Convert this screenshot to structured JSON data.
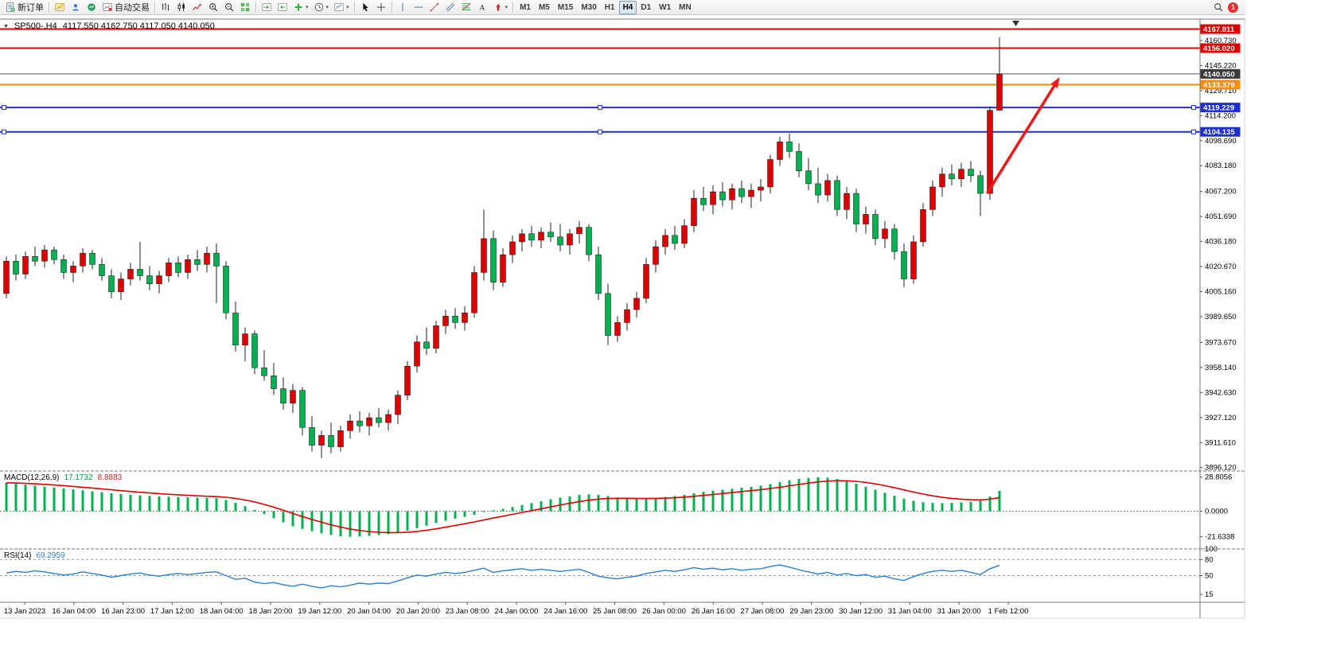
{
  "glyphs": {
    "caret": "▾"
  },
  "colors": {
    "bull": "#e00000",
    "bear": "#00b14f",
    "wick": "#222222",
    "macd_hist": "#00b14f",
    "macd_signal": "#e00000",
    "rsi_line": "#2a7fd0",
    "arrow": "#f01818",
    "axis_text": "#000000",
    "hline_red": "#f00000",
    "hline_blue": "#1d2fd0",
    "hline_orange": "#ff8c00",
    "price_line": "#5a5a5a"
  },
  "toolbar": {
    "notification_count": "1",
    "groups": [
      {
        "items": [
          {
            "name": "new-order-button",
            "icon": "new-order",
            "label": "新订单"
          }
        ]
      },
      {
        "items": [
          {
            "name": "new-chart-button",
            "icon": "new-chart"
          },
          {
            "name": "profiles-button",
            "icon": "profiles"
          },
          {
            "name": "market-watch-button",
            "icon": "market-watch"
          },
          {
            "name": "autotrading-button",
            "icon": "autotrading",
            "label": "自动交易"
          }
        ]
      },
      {
        "items": [
          {
            "name": "bar-chart-button",
            "icon": "bar-chart"
          },
          {
            "name": "candle-chart-button",
            "icon": "candle-chart"
          },
          {
            "name": "line-chart-button",
            "icon": "line-chart"
          },
          {
            "name": "zoom-in-button",
            "icon": "zoom-in"
          },
          {
            "name": "zoom-out-button",
            "icon": "zoom-out"
          },
          {
            "name": "tile-windows-button",
            "icon": "tile-windows"
          }
        ]
      },
      {
        "items": [
          {
            "name": "auto-scroll-button",
            "icon": "auto-scroll"
          },
          {
            "name": "chart-shift-button",
            "icon": "chart-shift"
          },
          {
            "name": "indicators-button",
            "icon": "add-indicator",
            "caret": true
          },
          {
            "name": "periods-button",
            "icon": "clock",
            "caret": true
          },
          {
            "name": "templates-button",
            "icon": "template",
            "caret": true
          }
        ]
      },
      {
        "items": [
          {
            "name": "cursor-button",
            "icon": "cursor"
          },
          {
            "name": "crosshair-button",
            "icon": "crosshair"
          }
        ]
      },
      {
        "items": [
          {
            "name": "vertical-line-button",
            "icon": "vertical-line"
          },
          {
            "name": "horizontal-line-button",
            "icon": "horizontal-line"
          },
          {
            "name": "trendline-button",
            "icon": "trendline"
          },
          {
            "name": "channel-button",
            "icon": "channel"
          },
          {
            "name": "fibonacci-button",
            "icon": "fibonacci"
          },
          {
            "name": "text-button",
            "icon": "text-label"
          },
          {
            "name": "arrows-button",
            "icon": "arrows",
            "caret": true
          }
        ]
      },
      {
        "type": "timeframes",
        "items": [
          {
            "label": "M1"
          },
          {
            "label": "M5"
          },
          {
            "label": "M15"
          },
          {
            "label": "M30"
          },
          {
            "label": "H1"
          },
          {
            "label": "H4",
            "active": true
          },
          {
            "label": "D1"
          },
          {
            "label": "W1"
          },
          {
            "label": "MN"
          }
        ]
      }
    ]
  },
  "chart": {
    "title": {
      "expand_icon": "▼",
      "symbol": "SP500-,H4",
      "ohlc": "4117.550 4162.750 4117.050 4140.050"
    },
    "hlines": [
      {
        "label": "4167.811",
        "price": 4167.811,
        "color": "#f00000",
        "badge": "#e00000",
        "width": 2
      },
      {
        "label": "4156.020",
        "price": 4156.02,
        "color": "#f00000",
        "badge": "#e00000",
        "width": 2
      },
      {
        "label": "4140.050",
        "price": 4140.05,
        "color": "#5a5a5a",
        "badge": "#3a3a3a",
        "width": 1,
        "is_price_line": true
      },
      {
        "label": "4133.379",
        "price": 4133.379,
        "color": "#ff8c00",
        "badge": "#ff8c00",
        "width": 2
      },
      {
        "label": "4119.229",
        "price": 4119.229,
        "color": "#1d2fd0",
        "badge": "#1d2fd0",
        "width": 2,
        "handles": true
      },
      {
        "label": "4104.135",
        "price": 4104.135,
        "color": "#1d2fd0",
        "badge": "#1d2fd0",
        "width": 2,
        "handles": true
      }
    ],
    "arrow": {
      "x1_bar": 102.7,
      "y1_price": 4066,
      "x2_bar": 110.3,
      "y2_price": 4138
    }
  },
  "chart_data": [
    {
      "type": "candlestick",
      "symbol": "SP500-",
      "timeframe": "H4",
      "ylim": [
        3894,
        4174
      ],
      "up_color": "#e00000",
      "down_color": "#00b14f",
      "y_ticks": [
        "4160.730",
        "4145.220",
        "4129.710",
        "4114.200",
        "4098.690",
        "4083.180",
        "4067.200",
        "4051.690",
        "4036.180",
        "4020.670",
        "4005.160",
        "3989.650",
        "3973.670",
        "3958.140",
        "3942.630",
        "3927.120",
        "3911.610",
        "3896.120"
      ],
      "x_labels": [
        "13 Jan 2023",
        "16 Jan 04:00",
        "16 Jan 23:00",
        "17 Jan 12:00",
        "18 Jan 04:00",
        "18 Jan 20:00",
        "19 Jan 12:00",
        "20 Jan 04:00",
        "20 Jan 20:00",
        "23 Jan 08:00",
        "24 Jan 00:00",
        "24 Jan 16:00",
        "25 Jan 08:00",
        "26 Jan 00:00",
        "26 Jan 16:00",
        "27 Jan 08:00",
        "29 Jan 23:00",
        "30 Jan 12:00",
        "31 Jan 04:00",
        "31 Jan 20:00",
        "1 Feb 12:00"
      ],
      "ohlc": [
        [
          4004,
          4027,
          4001,
          4024
        ],
        [
          4024,
          4028,
          4012,
          4016
        ],
        [
          4016,
          4030,
          4013,
          4027
        ],
        [
          4027,
          4033,
          4021,
          4024
        ],
        [
          4024,
          4034,
          4020,
          4031
        ],
        [
          4031,
          4033,
          4022,
          4025
        ],
        [
          4025,
          4028,
          4013,
          4017
        ],
        [
          4017,
          4024,
          4011,
          4021
        ],
        [
          4021,
          4032,
          4017,
          4029
        ],
        [
          4029,
          4031,
          4019,
          4022
        ],
        [
          4022,
          4026,
          4012,
          4015
        ],
        [
          4015,
          4019,
          4001,
          4005
        ],
        [
          4005,
          4017,
          4000,
          4013
        ],
        [
          4013,
          4023,
          4009,
          4019
        ],
        [
          4019,
          4036,
          4012,
          4015
        ],
        [
          4015,
          4021,
          4006,
          4010
        ],
        [
          4010,
          4018,
          4004,
          4015
        ],
        [
          4015,
          4026,
          4011,
          4023
        ],
        [
          4023,
          4027,
          4014,
          4017
        ],
        [
          4017,
          4028,
          4013,
          4025
        ],
        [
          4025,
          4031,
          4018,
          4022
        ],
        [
          4022,
          4033,
          4017,
          4029
        ],
        [
          4029,
          4035,
          3998,
          4021
        ],
        [
          4021,
          4024,
          3988,
          3992
        ],
        [
          3992,
          3999,
          3968,
          3972
        ],
        [
          3972,
          3983,
          3962,
          3979
        ],
        [
          3979,
          3981,
          3954,
          3958
        ],
        [
          3958,
          3969,
          3950,
          3953
        ],
        [
          3953,
          3961,
          3941,
          3945
        ],
        [
          3945,
          3952,
          3932,
          3936
        ],
        [
          3936,
          3948,
          3930,
          3944
        ],
        [
          3944,
          3946,
          3916,
          3921
        ],
        [
          3921,
          3928,
          3906,
          3910
        ],
        [
          3910,
          3919,
          3902,
          3916
        ],
        [
          3916,
          3924,
          3905,
          3909
        ],
        [
          3909,
          3922,
          3906,
          3919
        ],
        [
          3919,
          3929,
          3914,
          3925
        ],
        [
          3925,
          3931,
          3918,
          3922
        ],
        [
          3922,
          3930,
          3916,
          3927
        ],
        [
          3927,
          3933,
          3921,
          3924
        ],
        [
          3924,
          3932,
          3919,
          3929
        ],
        [
          3929,
          3944,
          3923,
          3941
        ],
        [
          3941,
          3962,
          3938,
          3959
        ],
        [
          3959,
          3978,
          3955,
          3974
        ],
        [
          3974,
          3983,
          3966,
          3970
        ],
        [
          3970,
          3987,
          3967,
          3984
        ],
        [
          3984,
          3994,
          3979,
          3990
        ],
        [
          3990,
          3995,
          3982,
          3986
        ],
        [
          3986,
          3996,
          3981,
          3992
        ],
        [
          3992,
          4021,
          3989,
          4017
        ],
        [
          4017,
          4056,
          4012,
          4038
        ],
        [
          4038,
          4043,
          4006,
          4011
        ],
        [
          4011,
          4032,
          4008,
          4028
        ],
        [
          4028,
          4040,
          4023,
          4036
        ],
        [
          4036,
          4044,
          4030,
          4041
        ],
        [
          4041,
          4046,
          4033,
          4037
        ],
        [
          4037,
          4045,
          4032,
          4042
        ],
        [
          4042,
          4048,
          4036,
          4039
        ],
        [
          4039,
          4047,
          4030,
          4034
        ],
        [
          4034,
          4044,
          4028,
          4041
        ],
        [
          4041,
          4049,
          4035,
          4045
        ],
        [
          4045,
          4047,
          4024,
          4028
        ],
        [
          4028,
          4033,
          4000,
          4004
        ],
        [
          4004,
          4010,
          3972,
          3978
        ],
        [
          3978,
          3990,
          3974,
          3986
        ],
        [
          3986,
          3998,
          3981,
          3994
        ],
        [
          3994,
          4005,
          3989,
          4001
        ],
        [
          4001,
          4026,
          3998,
          4022
        ],
        [
          4022,
          4037,
          4017,
          4033
        ],
        [
          4033,
          4044,
          4028,
          4040
        ],
        [
          4040,
          4046,
          4031,
          4035
        ],
        [
          4035,
          4050,
          4032,
          4046
        ],
        [
          4046,
          4068,
          4042,
          4063
        ],
        [
          4063,
          4070,
          4055,
          4059
        ],
        [
          4059,
          4071,
          4053,
          4067
        ],
        [
          4067,
          4073,
          4058,
          4062
        ],
        [
          4062,
          4072,
          4056,
          4069
        ],
        [
          4069,
          4074,
          4060,
          4064
        ],
        [
          4064,
          4072,
          4057,
          4068
        ],
        [
          4068,
          4075,
          4061,
          4070
        ],
        [
          4070,
          4090,
          4066,
          4087
        ],
        [
          4087,
          4101,
          4083,
          4098
        ],
        [
          4098,
          4103,
          4088,
          4092
        ],
        [
          4092,
          4097,
          4076,
          4080
        ],
        [
          4080,
          4088,
          4068,
          4072
        ],
        [
          4072,
          4082,
          4060,
          4065
        ],
        [
          4065,
          4078,
          4061,
          4074
        ],
        [
          4074,
          4077,
          4052,
          4056
        ],
        [
          4056,
          4070,
          4050,
          4066
        ],
        [
          4066,
          4069,
          4042,
          4047
        ],
        [
          4047,
          4058,
          4041,
          4053
        ],
        [
          4053,
          4056,
          4034,
          4038
        ],
        [
          4038,
          4049,
          4032,
          4044
        ],
        [
          4044,
          4047,
          4025,
          4030
        ],
        [
          4030,
          4035,
          4008,
          4013
        ],
        [
          4013,
          4040,
          4010,
          4036
        ],
        [
          4036,
          4060,
          4033,
          4056
        ],
        [
          4056,
          4074,
          4052,
          4070
        ],
        [
          4070,
          4082,
          4064,
          4078
        ],
        [
          4078,
          4084,
          4071,
          4075
        ],
        [
          4075,
          4085,
          4070,
          4081
        ],
        [
          4081,
          4086,
          4073,
          4077
        ],
        [
          4077,
          4080,
          4052,
          4066
        ],
        [
          4066,
          4120,
          4062,
          4117.5
        ],
        [
          4117.55,
          4162.75,
          4117.05,
          4140.05
        ]
      ]
    },
    {
      "type": "bar",
      "name": "MACD(12,26,9)",
      "current": "17.1732",
      "signal_current": "8.8883",
      "signal_period": 9,
      "ylim": [
        -32,
        34
      ],
      "y_ticks": [
        "28.8056",
        "0.0000",
        "-21.6338"
      ],
      "values": [
        24.0,
        23.2,
        22.4,
        21.6,
        20.8,
        20.0,
        19.2,
        18.4,
        17.6,
        16.8,
        16.0,
        15.2,
        14.5,
        13.9,
        13.4,
        12.9,
        12.5,
        12.2,
        11.9,
        11.7,
        11.5,
        11.3,
        11.0,
        9.5,
        7.0,
        4.2,
        1.0,
        -2.5,
        -6.0,
        -9.5,
        -12.8,
        -15.0,
        -17.0,
        -18.8,
        -20.2,
        -21.2,
        -21.6,
        -21.4,
        -20.9,
        -20.2,
        -19.4,
        -18.2,
        -16.5,
        -14.4,
        -12.2,
        -10.0,
        -8.0,
        -6.3,
        -4.8,
        -3.0,
        -0.8,
        0.8,
        2.0,
        3.5,
        5.2,
        6.8,
        8.4,
        10.0,
        11.4,
        12.6,
        13.8,
        14.2,
        13.8,
        12.8,
        11.6,
        10.8,
        10.4,
        10.6,
        11.2,
        12.0,
        12.8,
        13.8,
        15.2,
        16.4,
        17.4,
        18.2,
        19.0,
        19.8,
        20.6,
        21.6,
        23.0,
        24.6,
        26.2,
        27.4,
        28.2,
        28.8,
        28.4,
        27.2,
        25.4,
        23.2,
        20.8,
        18.2,
        15.6,
        13.0,
        10.6,
        8.8,
        7.6,
        7.0,
        6.8,
        7.0,
        7.4,
        8.0,
        9.2,
        12.4,
        17.1732
      ]
    },
    {
      "type": "line",
      "name": "RSI(14)",
      "current": "69.2959",
      "levels": [
        80,
        50
      ],
      "ylim": [
        0,
        100
      ],
      "y_ticks": [
        "100",
        "80",
        "50",
        "15"
      ],
      "values": [
        55,
        58,
        56,
        59,
        57,
        54,
        51,
        53,
        57,
        54,
        51,
        47,
        50,
        53,
        55,
        51,
        49,
        52,
        54,
        52,
        54,
        56,
        57,
        50,
        43,
        45,
        38,
        35,
        37,
        33,
        30,
        34,
        30,
        27,
        31,
        29,
        32,
        36,
        34,
        36,
        35,
        40,
        46,
        51,
        49,
        53,
        56,
        54,
        56,
        60,
        64,
        56,
        59,
        61,
        63,
        60,
        62,
        60,
        58,
        60,
        62,
        56,
        49,
        46,
        44,
        47,
        49,
        54,
        57,
        60,
        58,
        61,
        65,
        62,
        64,
        61,
        63,
        60,
        62,
        63,
        67,
        70,
        66,
        61,
        57,
        53,
        56,
        51,
        54,
        50,
        52,
        47,
        49,
        44,
        41,
        48,
        54,
        58,
        60,
        58,
        60,
        56,
        52,
        63,
        69.2959
      ]
    }
  ]
}
